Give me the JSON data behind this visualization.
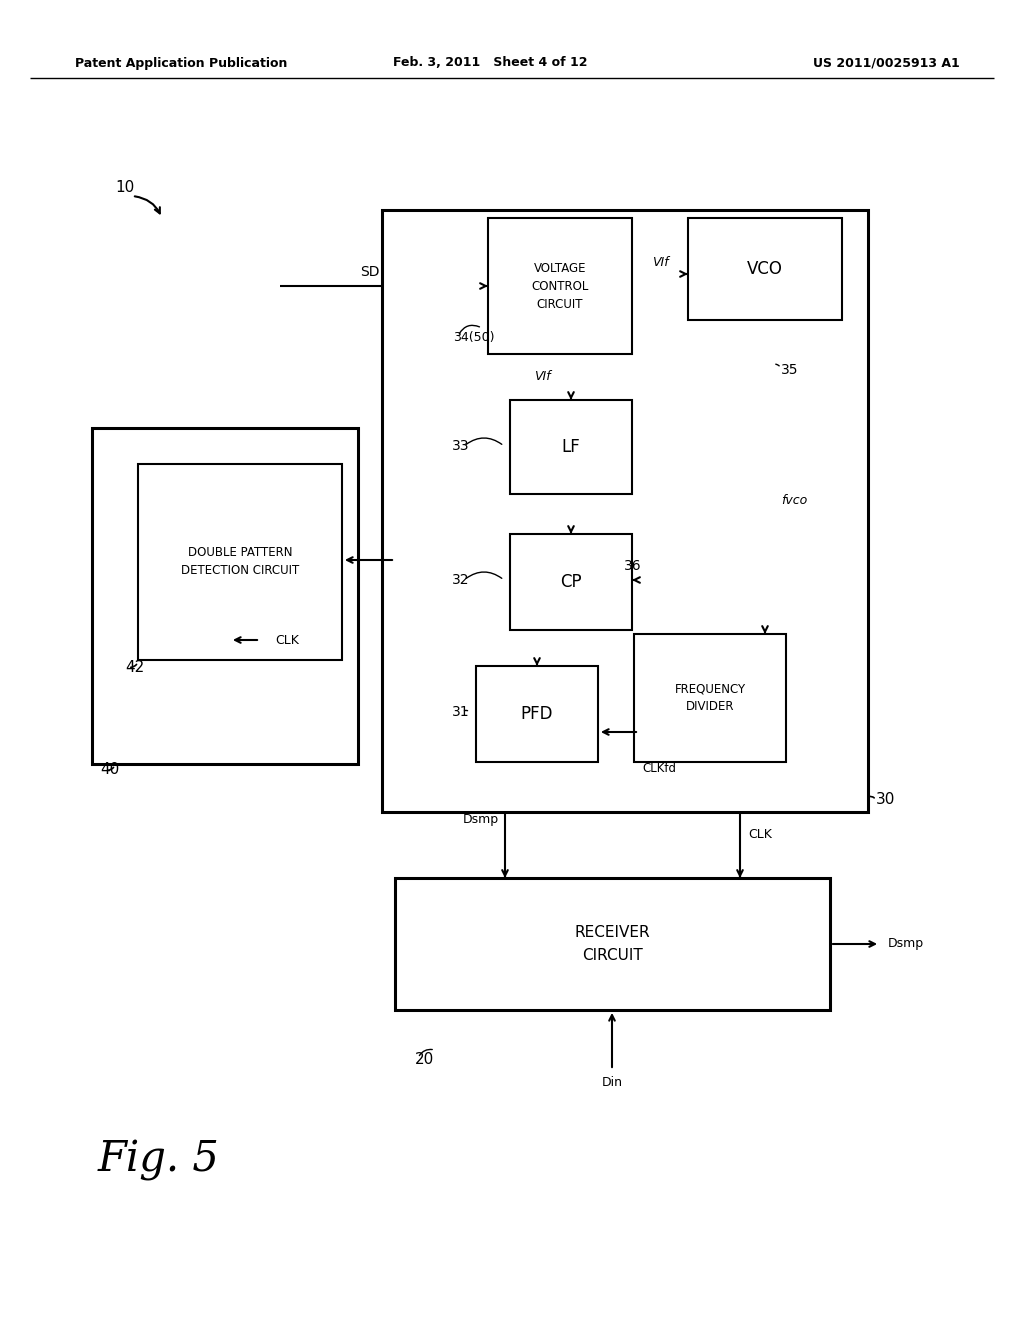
{
  "bg_color": "#ffffff",
  "header_left": "Patent Application Publication",
  "header_center": "Feb. 3, 2011   Sheet 4 of 12",
  "header_right": "US 2011/0025913 A1",
  "ref_10": "10",
  "ref_20": "20",
  "ref_30": "30",
  "ref_40": "40",
  "ref_42": "42",
  "ref_31": "31",
  "ref_32": "32",
  "ref_33": "33",
  "ref_34": "34(50)",
  "ref_35": "35",
  "ref_36": "36",
  "sig_SD": "SD",
  "sig_CLK": "CLK",
  "sig_Dsmp": "Dsmp",
  "sig_Din": "Din",
  "sig_fvco": "fvco",
  "sig_VIf": "VIf",
  "sig_CLKfd": "CLKfd",
  "box_receiver": "RECEIVER\nCIRCUIT",
  "box_double": "DOUBLE PATTERN\nDETECTION CIRCUIT",
  "box_pfd": "PFD",
  "box_cp": "CP",
  "box_lf": "LF",
  "box_vcc": "VOLTAGE\nCONTROL\nCIRCUIT",
  "box_vco": "VCO",
  "box_fd": "FREQUENCY\nDIVIDER",
  "fig_label": "Fig. 5"
}
